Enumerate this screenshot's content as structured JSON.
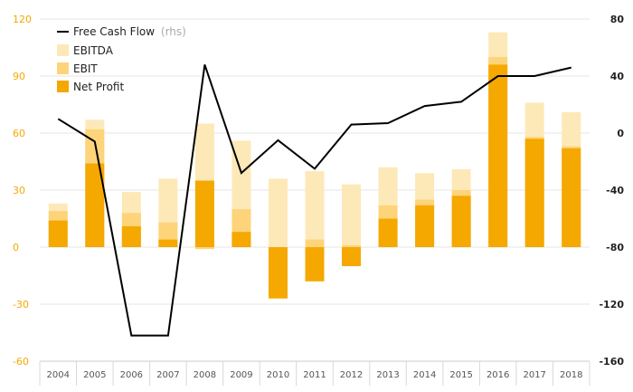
{
  "chart_data": {
    "type": "bar",
    "categories": [
      "2004",
      "2005",
      "2006",
      "2007",
      "2008",
      "2009",
      "2010",
      "2011",
      "2012",
      "2013",
      "2014",
      "2015",
      "2016",
      "2017",
      "2018"
    ],
    "series": [
      {
        "name": "EBITDA",
        "axis": "left",
        "color": "#fde9b8",
        "values": [
          23,
          67,
          29,
          36,
          65,
          56,
          36,
          40,
          33,
          42,
          39,
          41,
          113,
          76,
          71
        ]
      },
      {
        "name": "EBIT",
        "axis": "left",
        "color": "#fdd47a",
        "values": [
          19,
          62,
          18,
          13,
          -1,
          20,
          0,
          4,
          1,
          22,
          25,
          30,
          100,
          58,
          53
        ]
      },
      {
        "name": "Net Profit",
        "axis": "left",
        "color": "#f5a800",
        "values": [
          14,
          44,
          11,
          4,
          35,
          8,
          -27,
          -18,
          -10,
          15,
          22,
          27,
          96,
          57,
          52
        ]
      },
      {
        "name": "Free Cash Flow",
        "name_note": "(rhs)",
        "axis": "right",
        "type": "line",
        "color": "#000000",
        "values": [
          10,
          -6,
          -142,
          -142,
          48,
          -28,
          -5,
          -25,
          6,
          7,
          19,
          22,
          40,
          40,
          46
        ]
      }
    ],
    "ylim": [
      -60,
      120
    ],
    "yticks": [
      -60,
      -30,
      0,
      30,
      60,
      90,
      120
    ],
    "y2lim": [
      -160,
      80
    ],
    "y2ticks": [
      -160,
      -120,
      -80,
      -40,
      0,
      40,
      80
    ],
    "legend": "top-left",
    "grid": true,
    "colors": {
      "left_axis": "#f5a800",
      "right_axis": "#222222"
    }
  }
}
